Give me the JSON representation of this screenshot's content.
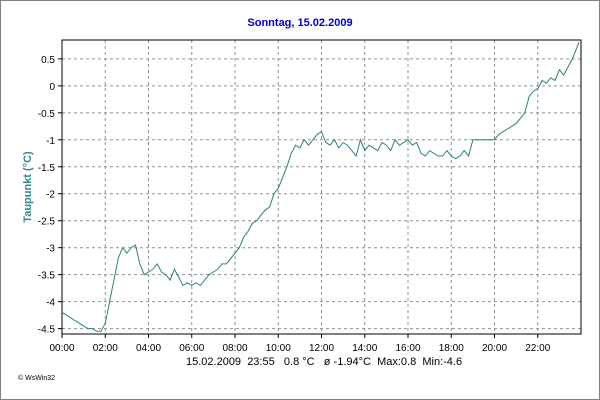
{
  "chart_data": {
    "type": "line",
    "title": "Sonntag, 15.02.2009",
    "xlabel": "",
    "ylabel": "Taupunkt (°C)",
    "ylim": [
      -4.6,
      0.85
    ],
    "xlim": [
      0,
      24
    ],
    "x_ticks": [
      {
        "label": "00:00",
        "v": 0
      },
      {
        "label": "02:00",
        "v": 2
      },
      {
        "label": "04:00",
        "v": 4
      },
      {
        "label": "06:00",
        "v": 6
      },
      {
        "label": "08:00",
        "v": 8
      },
      {
        "label": "10:00",
        "v": 10
      },
      {
        "label": "12:00",
        "v": 12
      },
      {
        "label": "14:00",
        "v": 14
      },
      {
        "label": "16:00",
        "v": 16
      },
      {
        "label": "18:00",
        "v": 18
      },
      {
        "label": "20:00",
        "v": 20
      },
      {
        "label": "22:00",
        "v": 22
      }
    ],
    "y_ticks": [
      {
        "label": "0.5",
        "v": 0.5
      },
      {
        "label": "0",
        "v": 0
      },
      {
        "label": "-0.5",
        "v": -0.5
      },
      {
        "label": "-1",
        "v": -1
      },
      {
        "label": "-1.5",
        "v": -1.5
      },
      {
        "label": "-2",
        "v": -2
      },
      {
        "label": "-2.5",
        "v": -2.5
      },
      {
        "label": "-3",
        "v": -3
      },
      {
        "label": "-3.5",
        "v": -3.5
      },
      {
        "label": "-4",
        "v": -4
      },
      {
        "label": "-4.5",
        "v": -4.5
      }
    ],
    "grid": true,
    "line_color": "#2f7f7f",
    "series": [
      {
        "x": [
          0.0,
          0.2,
          0.4,
          0.6,
          0.8,
          1.0,
          1.2,
          1.4,
          1.6,
          1.8,
          2.0,
          2.2,
          2.4,
          2.6,
          2.8,
          3.0,
          3.2,
          3.4,
          3.6,
          3.8,
          4.0,
          4.2,
          4.4,
          4.6,
          4.8,
          5.0,
          5.2,
          5.4,
          5.6,
          5.8,
          6.0,
          6.2,
          6.4,
          6.6,
          6.8,
          7.0,
          7.2,
          7.4,
          7.6,
          7.8,
          8.0,
          8.2,
          8.4,
          8.6,
          8.8,
          9.0,
          9.2,
          9.4,
          9.6,
          9.8,
          10.0,
          10.2,
          10.4,
          10.6,
          10.8,
          11.0,
          11.2,
          11.4,
          11.6,
          11.8,
          12.0,
          12.2,
          12.4,
          12.6,
          12.8,
          13.0,
          13.2,
          13.4,
          13.6,
          13.8,
          14.0,
          14.2,
          14.4,
          14.6,
          14.8,
          15.0,
          15.2,
          15.4,
          15.6,
          15.8,
          16.0,
          16.2,
          16.4,
          16.6,
          16.8,
          17.0,
          17.2,
          17.4,
          17.6,
          17.8,
          18.0,
          18.2,
          18.4,
          18.6,
          18.8,
          19.0,
          19.2,
          19.4,
          19.6,
          19.8,
          20.0,
          20.2,
          20.4,
          20.6,
          20.8,
          21.0,
          21.2,
          21.4,
          21.6,
          21.8,
          22.0,
          22.2,
          22.4,
          22.6,
          22.8,
          23.0,
          23.2,
          23.4,
          23.6,
          23.8,
          23.9
        ],
        "values": [
          -4.2,
          -4.25,
          -4.3,
          -4.35,
          -4.4,
          -4.45,
          -4.5,
          -4.5,
          -4.55,
          -4.55,
          -4.4,
          -4.0,
          -3.6,
          -3.2,
          -3.0,
          -3.1,
          -3.0,
          -2.95,
          -3.3,
          -3.5,
          -3.45,
          -3.4,
          -3.3,
          -3.45,
          -3.5,
          -3.6,
          -3.4,
          -3.55,
          -3.7,
          -3.65,
          -3.7,
          -3.65,
          -3.7,
          -3.6,
          -3.5,
          -3.45,
          -3.4,
          -3.3,
          -3.3,
          -3.2,
          -3.1,
          -3.0,
          -2.8,
          -2.7,
          -2.55,
          -2.5,
          -2.4,
          -2.3,
          -2.25,
          -2.0,
          -1.9,
          -1.7,
          -1.5,
          -1.25,
          -1.1,
          -1.15,
          -1.0,
          -1.1,
          -1.0,
          -0.9,
          -0.85,
          -1.05,
          -1.1,
          -1.0,
          -1.15,
          -1.05,
          -1.1,
          -1.2,
          -1.3,
          -1.0,
          -1.2,
          -1.1,
          -1.15,
          -1.2,
          -1.05,
          -1.1,
          -1.2,
          -1.0,
          -1.1,
          -1.05,
          -1.0,
          -1.1,
          -1.05,
          -1.25,
          -1.3,
          -1.2,
          -1.25,
          -1.3,
          -1.3,
          -1.2,
          -1.3,
          -1.35,
          -1.3,
          -1.2,
          -1.3,
          -1.0,
          -1.0,
          -1.0,
          -1.0,
          -1.0,
          -1.0,
          -0.9,
          -0.85,
          -0.8,
          -0.75,
          -0.7,
          -0.6,
          -0.5,
          -0.2,
          -0.1,
          -0.05,
          0.1,
          0.05,
          0.15,
          0.1,
          0.3,
          0.2,
          0.35,
          0.5,
          0.7,
          0.8
        ]
      }
    ]
  },
  "summary": {
    "date": "15.02.2009",
    "time": "23:55",
    "current": "0.8 °C",
    "average": "ø -1.94°C",
    "max": "Max:0.8",
    "min": "Min:-4.6"
  },
  "credit": "© WsWin32"
}
